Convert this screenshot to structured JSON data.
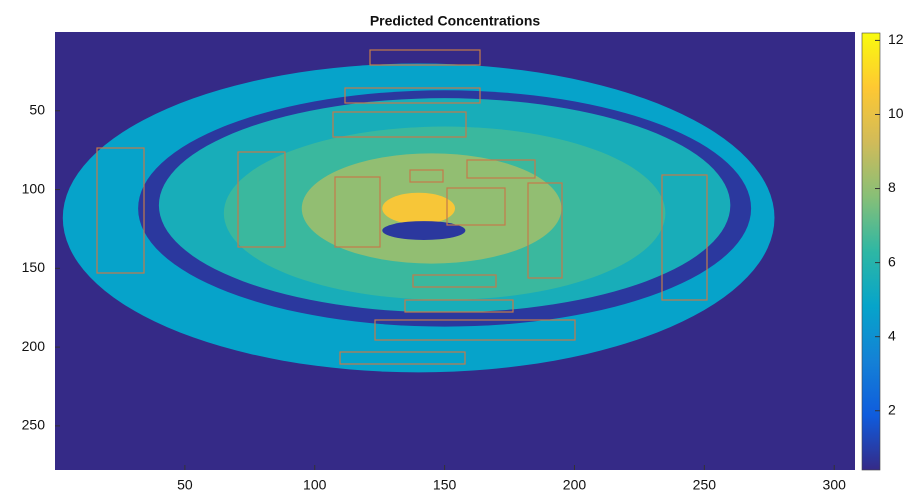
{
  "chart_data": {
    "type": "heatmap",
    "title": "Predicted Concentrations",
    "values": [
      4.8,
      0.8,
      5.5,
      6.5,
      8,
      10.5,
      0.8
    ],
    "xlim": [
      0,
      308
    ],
    "xticks": [
      50,
      100,
      150,
      200,
      250,
      300
    ],
    "ylim": [
      0,
      278
    ],
    "yticks": [
      50,
      100,
      150,
      200,
      250
    ],
    "clim": [
      0.4,
      12.2
    ],
    "cticks": [
      2,
      4,
      6,
      8,
      10,
      12
    ],
    "colormap": [
      "#352a87",
      "#0f5cdd",
      "#1481d6",
      "#06a4ca",
      "#2eb7a4",
      "#87bf77",
      "#d1bb59",
      "#fec832",
      "#f9fb0e"
    ]
  }
}
